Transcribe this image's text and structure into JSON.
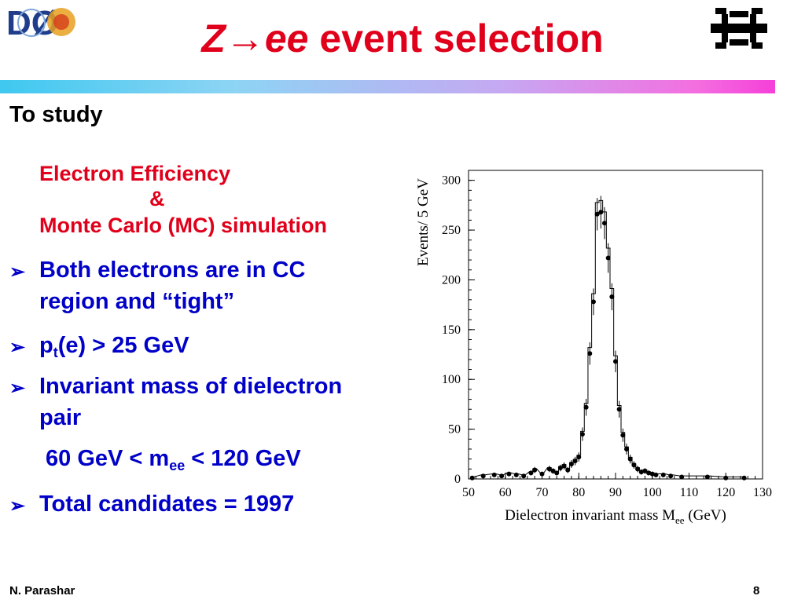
{
  "slide": {
    "title_z": "Z",
    "title_arrow": "→",
    "title_ee": "ee",
    "title_rest": " event selection",
    "to_study": "To study",
    "red_line1": "Electron Efficiency",
    "red_amp": "&",
    "red_line2": "Monte Carlo (MC) simulation",
    "bullet_marker": "➢",
    "bullets": {
      "b1_line1": "Both electrons are in CC",
      "b1_line2": "region and “tight”",
      "b2_p": "p",
      "b2_sub": "t",
      "b2_rest": "(e) > 25 GeV",
      "b3_line1": "Invariant mass of dielectron",
      "b3_line2": "pair",
      "b3_range_a": "60 GeV < m",
      "b3_range_sub": "ee",
      "b3_range_b": " < 120 GeV",
      "b4": "Total candidates = 1997"
    },
    "footer_author": "N. Parashar",
    "page_number": "8"
  },
  "logos": {
    "d0_text": "DØ"
  },
  "colors": {
    "title_red": "#e0001b",
    "bullet_blue": "#0000c8"
  },
  "chart_data": {
    "type": "scatter",
    "xlabel": "Dielectron invariant mass M",
    "xlabel_sub": "ee",
    "xlabel_unit": " (GeV)",
    "ylabel": "Events/ 5 GeV",
    "xlim": [
      50,
      130
    ],
    "ylim": [
      0,
      310
    ],
    "xticks": [
      50,
      60,
      70,
      80,
      90,
      100,
      110,
      120,
      130
    ],
    "yticks": [
      0,
      50,
      100,
      150,
      200,
      250,
      300
    ],
    "grid": false,
    "points": [
      {
        "x": 51,
        "y": 1
      },
      {
        "x": 54,
        "y": 3
      },
      {
        "x": 57,
        "y": 4
      },
      {
        "x": 59,
        "y": 3
      },
      {
        "x": 61,
        "y": 5
      },
      {
        "x": 63,
        "y": 4
      },
      {
        "x": 65,
        "y": 3
      },
      {
        "x": 67,
        "y": 6
      },
      {
        "x": 68,
        "y": 9
      },
      {
        "x": 70,
        "y": 5
      },
      {
        "x": 72,
        "y": 10
      },
      {
        "x": 73,
        "y": 8
      },
      {
        "x": 74,
        "y": 6
      },
      {
        "x": 75,
        "y": 11
      },
      {
        "x": 76,
        "y": 13
      },
      {
        "x": 77,
        "y": 9
      },
      {
        "x": 78,
        "y": 15
      },
      {
        "x": 79,
        "y": 18
      },
      {
        "x": 80,
        "y": 22
      },
      {
        "x": 81,
        "y": 45
      },
      {
        "x": 82,
        "y": 72
      },
      {
        "x": 83,
        "y": 126
      },
      {
        "x": 84,
        "y": 178
      },
      {
        "x": 85,
        "y": 266
      },
      {
        "x": 86,
        "y": 268
      },
      {
        "x": 87,
        "y": 257
      },
      {
        "x": 88,
        "y": 222
      },
      {
        "x": 89,
        "y": 183
      },
      {
        "x": 90,
        "y": 118
      },
      {
        "x": 91,
        "y": 70
      },
      {
        "x": 92,
        "y": 44
      },
      {
        "x": 93,
        "y": 30
      },
      {
        "x": 94,
        "y": 20
      },
      {
        "x": 95,
        "y": 14
      },
      {
        "x": 96,
        "y": 10
      },
      {
        "x": 97,
        "y": 7
      },
      {
        "x": 98,
        "y": 8
      },
      {
        "x": 99,
        "y": 6
      },
      {
        "x": 100,
        "y": 5
      },
      {
        "x": 101,
        "y": 4
      },
      {
        "x": 103,
        "y": 4
      },
      {
        "x": 105,
        "y": 3
      },
      {
        "x": 108,
        "y": 2
      },
      {
        "x": 115,
        "y": 2
      },
      {
        "x": 120,
        "y": 1
      },
      {
        "x": 125,
        "y": 1
      }
    ]
  }
}
